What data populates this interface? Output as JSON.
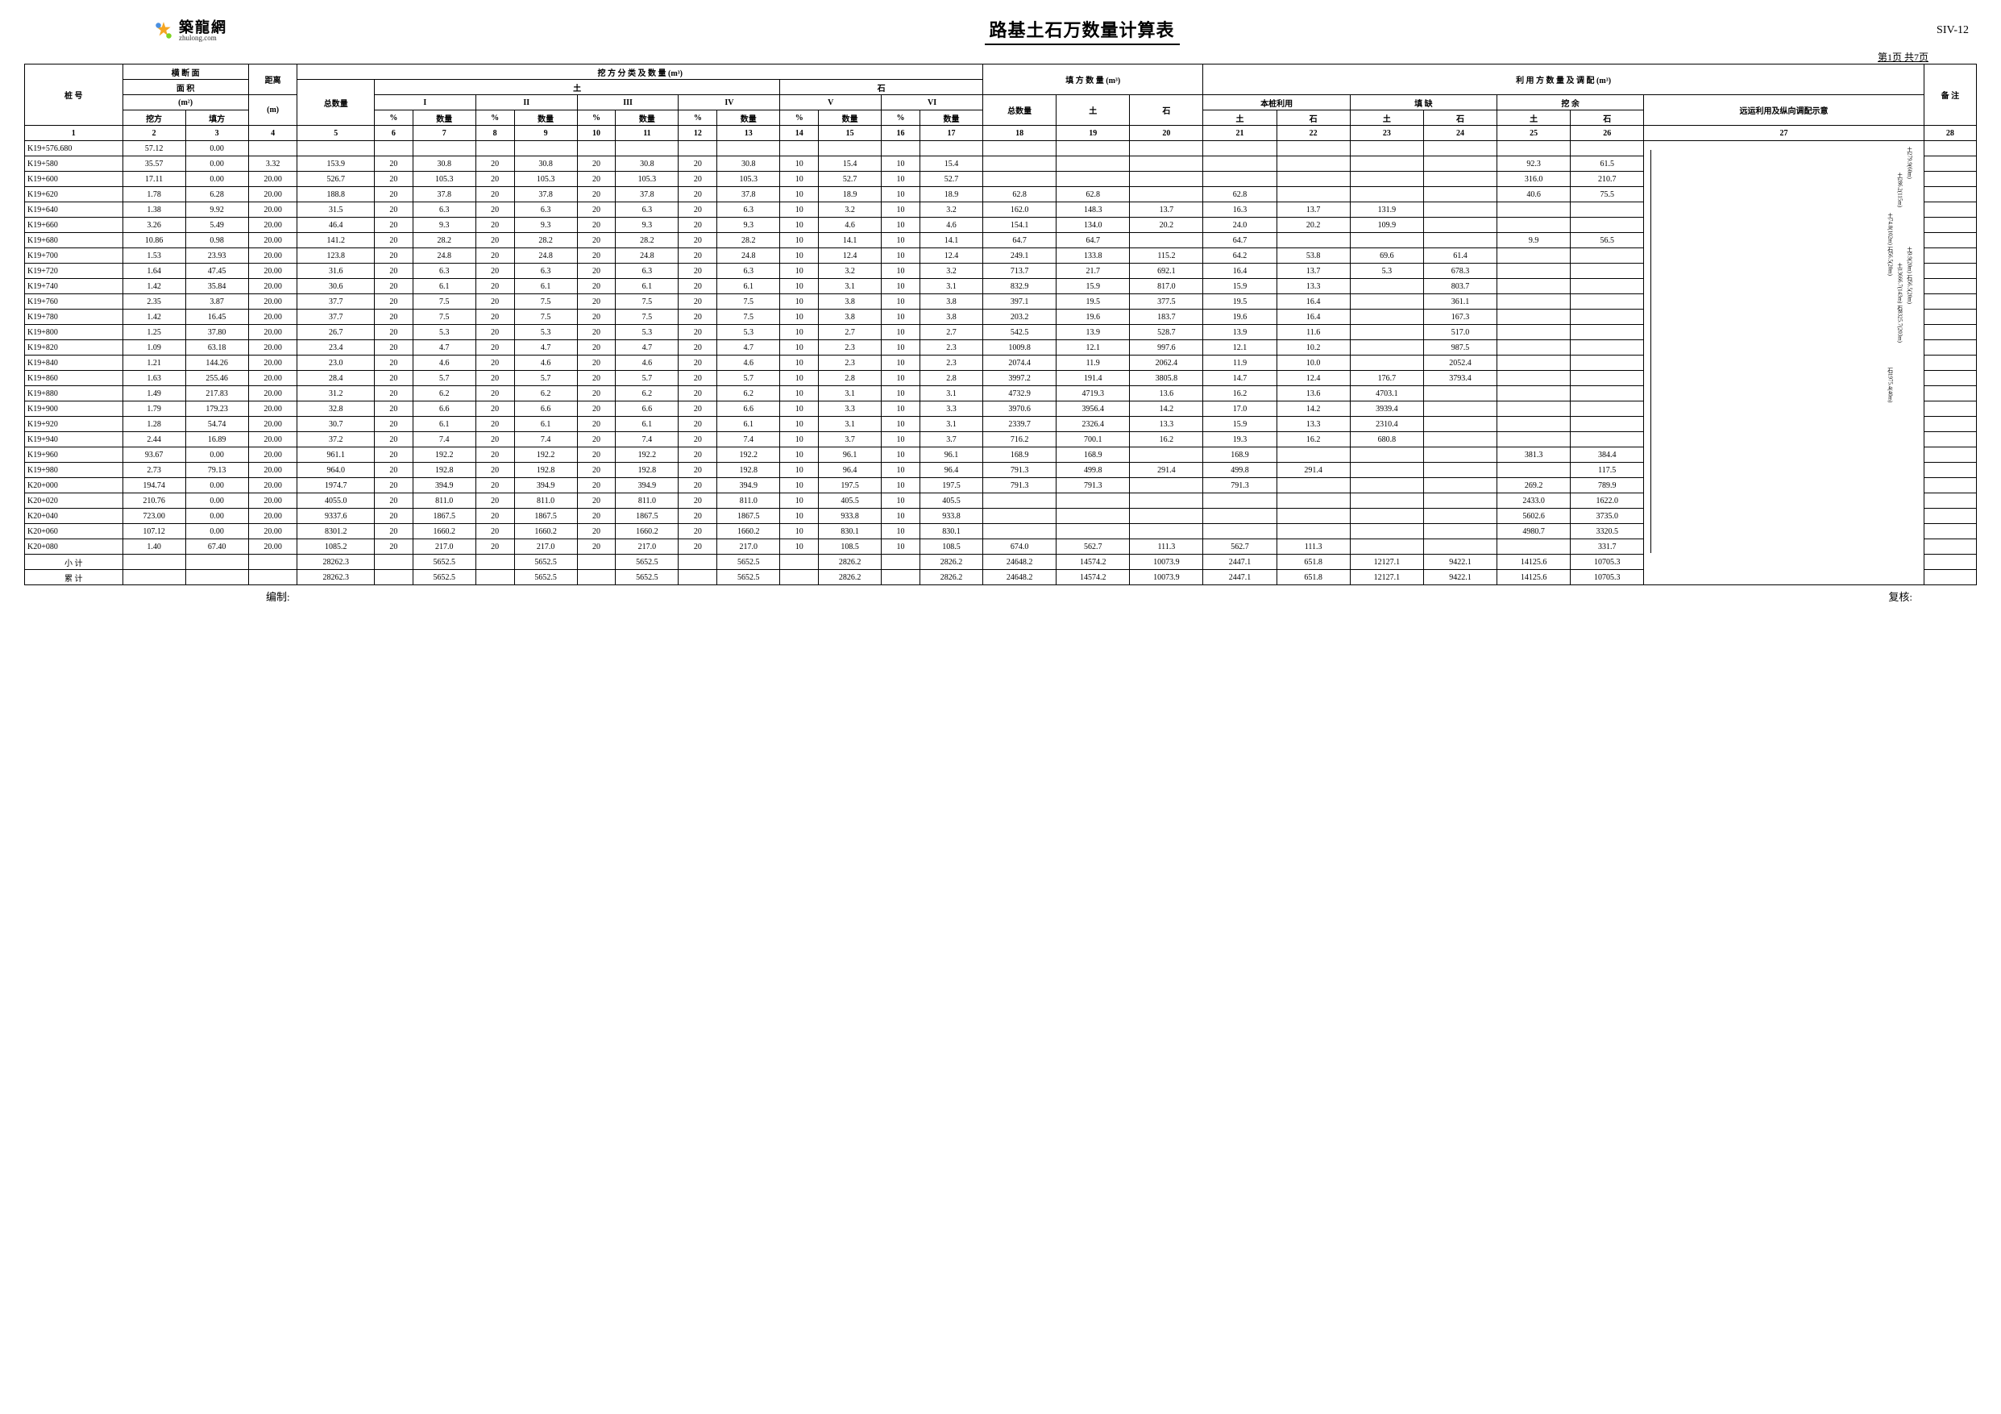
{
  "logo_cn": "築龍網",
  "logo_en": "zhulong.com",
  "title": "路基土石万数量计算表",
  "doc_code": "SIV-12",
  "page_info": "第1页 共7页",
  "headers": {
    "station": "桩 号",
    "cross_section": "横 断 面",
    "area": "面 积",
    "area_unit": "(m²)",
    "cut": "挖方",
    "fill": "填方",
    "distance": "距离",
    "distance_unit": "(m)",
    "total_qty": "总数量",
    "cut_class": "挖 方 分 类 及 数 量 (m³)",
    "soil": "土",
    "rock": "石",
    "I": "I",
    "II": "II",
    "III": "III",
    "IV": "IV",
    "V": "V",
    "VI": "VI",
    "pct": "%",
    "qty": "数量",
    "fill_qty": "填 方 数 量 (m³)",
    "util": "利 用 方 数 量 及 调 配 (m³)",
    "self_use": "本桩利用",
    "fill_lack": "填 缺",
    "cut_surplus": "挖 余",
    "transport": "远运利用及纵向调配示意",
    "remark": "备 注"
  },
  "col_nums": [
    "1",
    "2",
    "3",
    "4",
    "5",
    "6",
    "7",
    "8",
    "9",
    "10",
    "11",
    "12",
    "13",
    "14",
    "15",
    "16",
    "17",
    "18",
    "19",
    "20",
    "21",
    "22",
    "23",
    "24",
    "25",
    "26",
    "27",
    "28"
  ],
  "rows": [
    {
      "s": "K19+576.680",
      "c": "57.12",
      "f": "0.00"
    },
    {
      "s": "K19+580",
      "c": "35.57",
      "f": "0.00",
      "d": "3.32",
      "t": "153.9",
      "p": "20",
      "v1": "30.8",
      "v2": "30.8",
      "v3": "30.8",
      "v4": "30.8",
      "p5": "10",
      "v5": "15.4",
      "p6": "10",
      "v6": "15.4",
      "c25": "92.3",
      "c26": "61.5",
      "rem": "土92.3(622m) 石61.5(622m)",
      "rem2": "弃方(到弃土坑K20-000)"
    },
    {
      "s": "K19+600",
      "c": "17.11",
      "f": "0.00",
      "d": "20.00",
      "t": "526.7",
      "p": "20",
      "v1": "105.3",
      "v2": "105.3",
      "v3": "105.3",
      "v4": "105.3",
      "p5": "10",
      "v5": "52.7",
      "p6": "10",
      "v6": "52.7",
      "c25": "316.0",
      "c26": "210.7"
    },
    {
      "s": "K19+620",
      "c": "1.78",
      "f": "6.28",
      "d": "20.00",
      "t": "188.8",
      "p": "20",
      "v1": "37.8",
      "v2": "37.8",
      "v3": "37.8",
      "v4": "37.8",
      "p5": "10",
      "v5": "18.9",
      "p6": "10",
      "v6": "18.9",
      "f18": "62.8",
      "f19": "62.8",
      "c21": "62.8",
      "c25": "40.6",
      "c26": "75.5"
    },
    {
      "s": "K19+640",
      "c": "1.38",
      "f": "9.92",
      "d": "20.00",
      "t": "31.5",
      "p": "20",
      "v1": "6.3",
      "v2": "6.3",
      "v3": "6.3",
      "v4": "6.3",
      "p5": "10",
      "v5": "3.2",
      "p6": "10",
      "v6": "3.2",
      "f18": "162.0",
      "f19": "148.3",
      "f20": "13.7",
      "c21": "16.3",
      "c22": "13.7",
      "c23": "131.9"
    },
    {
      "s": "K19+660",
      "c": "3.26",
      "f": "5.49",
      "d": "20.00",
      "t": "46.4",
      "p": "20",
      "v1": "9.3",
      "v2": "9.3",
      "v3": "9.3",
      "v4": "9.3",
      "p5": "10",
      "v5": "4.6",
      "p6": "10",
      "v6": "4.6",
      "f18": "154.1",
      "f19": "134.0",
      "f20": "20.2",
      "c21": "24.0",
      "c22": "20.2",
      "c23": "109.9"
    },
    {
      "s": "K19+680",
      "c": "10.86",
      "f": "0.98",
      "d": "20.00",
      "t": "141.2",
      "p": "20",
      "v1": "28.2",
      "v2": "28.2",
      "v3": "28.2",
      "v4": "28.2",
      "p5": "10",
      "v5": "14.1",
      "p6": "10",
      "v6": "14.1",
      "f18": "64.7",
      "f19": "64.7",
      "c21": "64.7",
      "c25": "9.9",
      "c26": "56.5"
    },
    {
      "s": "K19+700",
      "c": "1.53",
      "f": "23.93",
      "d": "20.00",
      "t": "123.8",
      "p": "20",
      "v1": "24.8",
      "v2": "24.8",
      "v3": "24.8",
      "v4": "24.8",
      "p5": "10",
      "v5": "12.4",
      "p6": "10",
      "v6": "12.4",
      "f18": "249.1",
      "f19": "133.8",
      "f20": "115.2",
      "c21": "64.2",
      "c22": "53.8",
      "c23": "69.6",
      "c24": "61.4"
    },
    {
      "s": "K19+720",
      "c": "1.64",
      "f": "47.45",
      "d": "20.00",
      "t": "31.6",
      "p": "20",
      "v1": "6.3",
      "v2": "6.3",
      "v3": "6.3",
      "v4": "6.3",
      "p5": "10",
      "v5": "3.2",
      "p6": "10",
      "v6": "3.2",
      "f18": "713.7",
      "f19": "21.7",
      "f20": "692.1",
      "c21": "16.4",
      "c22": "13.7",
      "c23": "5.3",
      "c24": "678.3"
    },
    {
      "s": "K19+740",
      "c": "1.42",
      "f": "35.84",
      "d": "20.00",
      "t": "30.6",
      "p": "20",
      "v1": "6.1",
      "v2": "6.1",
      "v3": "6.1",
      "v4": "6.1",
      "p5": "10",
      "v5": "3.1",
      "p6": "10",
      "v6": "3.1",
      "f18": "832.9",
      "f19": "15.9",
      "f20": "817.0",
      "c21": "15.9",
      "c22": "13.3",
      "c24": "803.7"
    },
    {
      "s": "K19+760",
      "c": "2.35",
      "f": "3.87",
      "d": "20.00",
      "t": "37.7",
      "p": "20",
      "v1": "7.5",
      "v2": "7.5",
      "v3": "7.5",
      "v4": "7.5",
      "p5": "10",
      "v5": "3.8",
      "p6": "10",
      "v6": "3.8",
      "f18": "397.1",
      "f19": "19.5",
      "f20": "377.5",
      "c21": "19.5",
      "c22": "16.4",
      "c24": "361.1"
    },
    {
      "s": "K19+780",
      "c": "1.42",
      "f": "16.45",
      "d": "20.00",
      "t": "37.7",
      "p": "20",
      "v1": "7.5",
      "v2": "7.5",
      "v3": "7.5",
      "v4": "7.5",
      "p5": "10",
      "v5": "3.8",
      "p6": "10",
      "v6": "3.8",
      "f18": "203.2",
      "f19": "19.6",
      "f20": "183.7",
      "c21": "19.6",
      "c22": "16.4",
      "c24": "167.3"
    },
    {
      "s": "K19+800",
      "c": "1.25",
      "f": "37.80",
      "d": "20.00",
      "t": "26.7",
      "p": "20",
      "v1": "5.3",
      "v2": "5.3",
      "v3": "5.3",
      "v4": "5.3",
      "p5": "10",
      "v5": "2.7",
      "p6": "10",
      "v6": "2.7",
      "f18": "542.5",
      "f19": "13.9",
      "f20": "528.7",
      "c21": "13.9",
      "c22": "11.6",
      "c24": "517.0"
    },
    {
      "s": "K19+820",
      "c": "1.09",
      "f": "63.18",
      "d": "20.00",
      "t": "23.4",
      "p": "20",
      "v1": "4.7",
      "v2": "4.7",
      "v3": "4.7",
      "v4": "4.7",
      "p5": "10",
      "v5": "2.3",
      "p6": "10",
      "v6": "2.3",
      "f18": "1009.8",
      "f19": "12.1",
      "f20": "997.6",
      "c21": "12.1",
      "c22": "10.2",
      "c24": "987.5"
    },
    {
      "s": "K19+840",
      "c": "1.21",
      "f": "144.26",
      "d": "20.00",
      "t": "23.0",
      "p": "20",
      "v1": "4.6",
      "v2": "4.6",
      "v3": "4.6",
      "v4": "4.6",
      "p5": "10",
      "v5": "2.3",
      "p6": "10",
      "v6": "2.3",
      "f18": "2074.4",
      "f19": "11.9",
      "f20": "2062.4",
      "c21": "11.9",
      "c22": "10.0",
      "c24": "2052.4"
    },
    {
      "s": "K19+860",
      "c": "1.63",
      "f": "255.46",
      "d": "20.00",
      "t": "28.4",
      "p": "20",
      "v1": "5.7",
      "v2": "5.7",
      "v3": "5.7",
      "v4": "5.7",
      "p5": "10",
      "v5": "2.8",
      "p6": "10",
      "v6": "2.8",
      "f18": "3997.2",
      "f19": "191.4",
      "f20": "3805.8",
      "c21": "14.7",
      "c22": "12.4",
      "c23": "176.7",
      "c24": "3793.4"
    },
    {
      "s": "K19+880",
      "c": "1.49",
      "f": "217.83",
      "d": "20.00",
      "t": "31.2",
      "p": "20",
      "v1": "6.2",
      "v2": "6.2",
      "v3": "6.2",
      "v4": "6.2",
      "p5": "10",
      "v5": "3.1",
      "p6": "10",
      "v6": "3.1",
      "f18": "4732.9",
      "f19": "4719.3",
      "f20": "13.6",
      "c21": "16.2",
      "c22": "13.6",
      "c23": "4703.1"
    },
    {
      "s": "K19+900",
      "c": "1.79",
      "f": "179.23",
      "d": "20.00",
      "t": "32.8",
      "p": "20",
      "v1": "6.6",
      "v2": "6.6",
      "v3": "6.6",
      "v4": "6.6",
      "p5": "10",
      "v5": "3.3",
      "p6": "10",
      "v6": "3.3",
      "f18": "3970.6",
      "f19": "3956.4",
      "f20": "14.2",
      "c21": "17.0",
      "c22": "14.2",
      "c23": "3939.4"
    },
    {
      "s": "K19+920",
      "c": "1.28",
      "f": "54.74",
      "d": "20.00",
      "t": "30.7",
      "p": "20",
      "v1": "6.1",
      "v2": "6.1",
      "v3": "6.1",
      "v4": "6.1",
      "p5": "10",
      "v5": "3.1",
      "p6": "10",
      "v6": "3.1",
      "f18": "2339.7",
      "f19": "2326.4",
      "f20": "13.3",
      "c21": "15.9",
      "c22": "13.3",
      "c23": "2310.4"
    },
    {
      "s": "K19+940",
      "c": "2.44",
      "f": "16.89",
      "d": "20.00",
      "t": "37.2",
      "p": "20",
      "v1": "7.4",
      "v2": "7.4",
      "v3": "7.4",
      "v4": "7.4",
      "p5": "10",
      "v5": "3.7",
      "p6": "10",
      "v6": "3.7",
      "f18": "716.2",
      "f19": "700.1",
      "f20": "16.2",
      "c21": "19.3",
      "c22": "16.2",
      "c23": "680.8"
    },
    {
      "s": "K19+960",
      "c": "93.67",
      "f": "0.00",
      "d": "20.00",
      "t": "961.1",
      "p": "20",
      "v1": "192.2",
      "v2": "192.2",
      "v3": "192.2",
      "v4": "192.2",
      "p5": "10",
      "v5": "96.1",
      "p6": "10",
      "v6": "96.1",
      "f18": "168.9",
      "f19": "168.9",
      "c21": "168.9",
      "c25": "381.3",
      "c26": "384.4"
    },
    {
      "s": "K19+980",
      "c": "2.73",
      "f": "79.13",
      "d": "20.00",
      "t": "964.0",
      "p": "20",
      "v1": "192.8",
      "v2": "192.8",
      "v3": "192.8",
      "v4": "192.8",
      "p5": "10",
      "v5": "96.4",
      "p6": "10",
      "v6": "96.4",
      "f18": "791.3",
      "f19": "499.8",
      "f20": "291.4",
      "c21": "499.8",
      "c22": "291.4",
      "c26": "117.5"
    },
    {
      "s": "K20+000",
      "c": "194.74",
      "f": "0.00",
      "d": "20.00",
      "t": "1974.7",
      "p": "20",
      "v1": "394.9",
      "v2": "394.9",
      "v3": "394.9",
      "v4": "394.9",
      "p5": "10",
      "v5": "197.5",
      "p6": "10",
      "v6": "197.5",
      "f18": "791.3",
      "f19": "791.3",
      "c21": "791.3",
      "c25": "269.2",
      "c26": "789.9"
    },
    {
      "s": "K20+020",
      "c": "210.76",
      "f": "0.00",
      "d": "20.00",
      "t": "4055.0",
      "p": "20",
      "v1": "811.0",
      "v2": "811.0",
      "v3": "811.0",
      "v4": "811.0",
      "p5": "10",
      "v5": "405.5",
      "p6": "10",
      "v6": "405.5",
      "c25": "2433.0",
      "c26": "1622.0"
    },
    {
      "s": "K20+040",
      "c": "723.00",
      "f": "0.00",
      "d": "20.00",
      "t": "9337.6",
      "p": "20",
      "v1": "1867.5",
      "v2": "1867.5",
      "v3": "1867.5",
      "v4": "1867.5",
      "p5": "10",
      "v5": "933.8",
      "p6": "10",
      "v6": "933.8",
      "c25": "5602.6",
      "c26": "3735.0"
    },
    {
      "s": "K20+060",
      "c": "107.12",
      "f": "0.00",
      "d": "20.00",
      "t": "8301.2",
      "p": "20",
      "v1": "1660.2",
      "v2": "1660.2",
      "v3": "1660.2",
      "v4": "1660.2",
      "p5": "10",
      "v5": "830.1",
      "p6": "10",
      "v6": "830.1",
      "c25": "4980.7",
      "c26": "3320.5"
    },
    {
      "s": "K20+080",
      "c": "1.40",
      "f": "67.40",
      "d": "20.00",
      "t": "1085.2",
      "p": "20",
      "v1": "217.0",
      "v2": "217.0",
      "v3": "217.0",
      "v4": "217.0",
      "p5": "10",
      "v5": "108.5",
      "p6": "10",
      "v6": "108.5",
      "f18": "674.0",
      "f19": "562.7",
      "f20": "111.3",
      "c21": "562.7",
      "c22": "111.3",
      "c26": "331.7"
    }
  ],
  "subtotal": {
    "label": "小 计",
    "t": "28262.3",
    "v1": "5652.5",
    "v2": "5652.5",
    "v3": "5652.5",
    "v4": "5652.5",
    "v5": "2826.2",
    "v6": "2826.2",
    "f18": "24648.2",
    "f19": "14574.2",
    "f20": "10073.9",
    "c21": "2447.1",
    "c22": "651.8",
    "c23": "12127.1",
    "c24": "9422.1",
    "c25": "14125.6",
    "c26": "10705.3"
  },
  "total": {
    "label": "累 计",
    "t": "28262.3",
    "v1": "5652.5",
    "v2": "5652.5",
    "v3": "5652.5",
    "v4": "5652.5",
    "v5": "2826.2",
    "v6": "2826.2",
    "f18": "24648.2",
    "f19": "14574.2",
    "f20": "10073.9",
    "c21": "2447.1",
    "c22": "651.8",
    "c23": "12127.1",
    "c24": "9422.1",
    "c25": "14125.6",
    "c26": "10705.3"
  },
  "footer_prepared": "编制:",
  "footer_checked": "复核:",
  "remarks_vertical": [
    "土279.9(60m)",
    "土286.2(115m)",
    "土74.8(102m) 石56.5(20m)",
    "土9.9(20m) 石56.5(20m)",
    "土13666.7(143m) 石8325.7(203m)",
    "石1975.4(40m)"
  ]
}
